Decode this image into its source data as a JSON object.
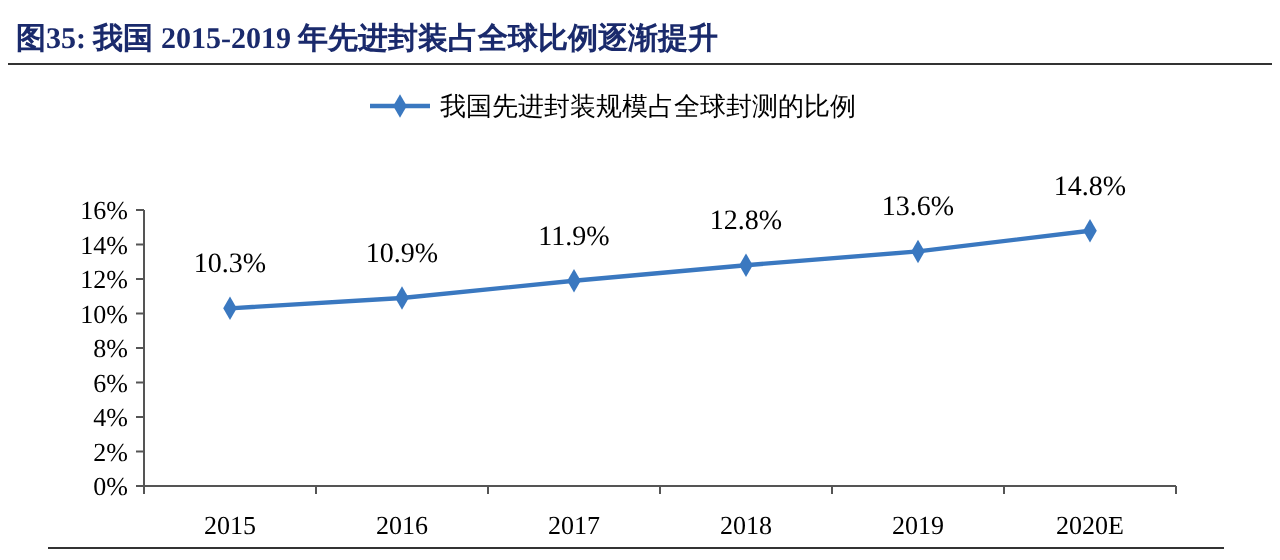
{
  "chart_data": {
    "type": "line",
    "title": "图35:  我国 2015-2019 年先进封装占全球比例逐渐提升",
    "categories": [
      "2015",
      "2016",
      "2017",
      "2018",
      "2019",
      "2020E"
    ],
    "series": [
      {
        "name": "我国先进封装规模占全球封测的比例",
        "color": "#3a78c0",
        "values": [
          10.3,
          10.9,
          11.9,
          12.8,
          13.6,
          14.8
        ],
        "value_labels": [
          "10.3%",
          "10.9%",
          "11.9%",
          "12.8%",
          "13.6%",
          "14.8%"
        ]
      }
    ],
    "ylim": [
      0,
      16
    ],
    "yticks": [
      {
        "value": 0,
        "label": "0%"
      },
      {
        "value": 2,
        "label": "2%"
      },
      {
        "value": 4,
        "label": "4%"
      },
      {
        "value": 6,
        "label": "6%"
      },
      {
        "value": 8,
        "label": "8%"
      },
      {
        "value": 10,
        "label": "10%"
      },
      {
        "value": 12,
        "label": "12%"
      },
      {
        "value": 14,
        "label": "14%"
      },
      {
        "value": 16,
        "label": "16%"
      }
    ],
    "grid": false,
    "legend": "top",
    "marker": "diamond",
    "line_style": "solid"
  }
}
